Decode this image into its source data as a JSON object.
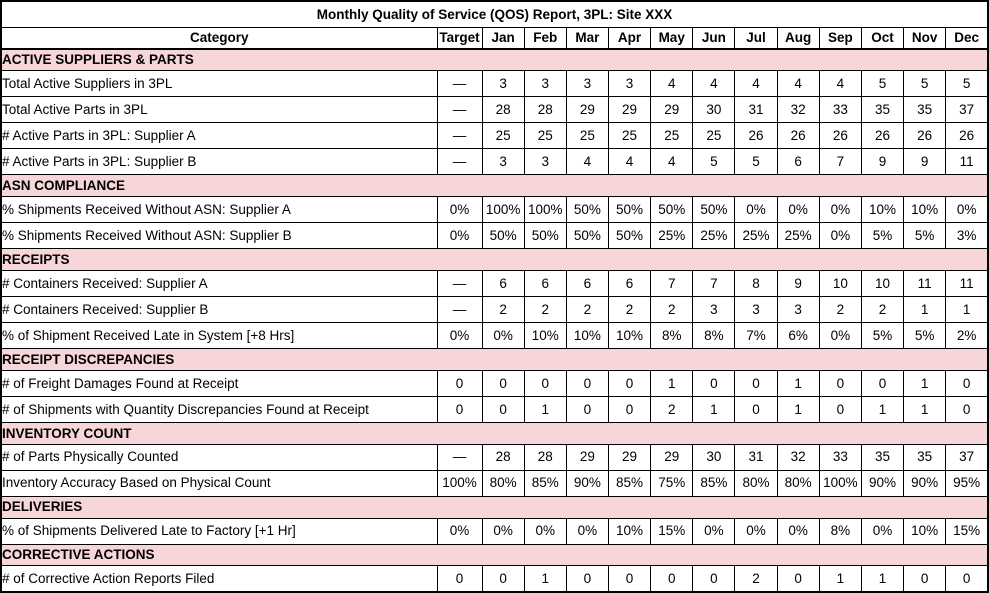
{
  "report": {
    "title": "Monthly Quality of Service (QOS) Report, 3PL: Site XXX"
  },
  "columns": [
    "Category",
    "Target",
    "Jan",
    "Feb",
    "Mar",
    "Apr",
    "May",
    "Jun",
    "Jul",
    "Aug",
    "Sep",
    "Oct",
    "Nov",
    "Dec"
  ],
  "colors": {
    "section_bg": "#f6d6d9",
    "border": "#000000",
    "background": "#ffffff",
    "text": "#000000"
  },
  "sections": [
    {
      "name": "ACTIVE SUPPLIERS & PARTS",
      "rows": [
        {
          "category": "Total Active Suppliers in 3PL",
          "target": "—",
          "values": [
            "3",
            "3",
            "3",
            "3",
            "4",
            "4",
            "4",
            "4",
            "4",
            "5",
            "5",
            "5"
          ]
        },
        {
          "category": "Total Active Parts in 3PL",
          "target": "—",
          "values": [
            "28",
            "28",
            "29",
            "29",
            "29",
            "30",
            "31",
            "32",
            "33",
            "35",
            "35",
            "37"
          ]
        },
        {
          "category": "# Active Parts in 3PL: Supplier A",
          "target": "—",
          "values": [
            "25",
            "25",
            "25",
            "25",
            "25",
            "25",
            "26",
            "26",
            "26",
            "26",
            "26",
            "26"
          ]
        },
        {
          "category": "# Active Parts in 3PL: Supplier B",
          "target": "—",
          "values": [
            "3",
            "3",
            "4",
            "4",
            "4",
            "5",
            "5",
            "6",
            "7",
            "9",
            "9",
            "11"
          ]
        }
      ]
    },
    {
      "name": "ASN COMPLIANCE",
      "rows": [
        {
          "category": "% Shipments Received Without ASN: Supplier A",
          "target": "0%",
          "values": [
            "100%",
            "100%",
            "50%",
            "50%",
            "50%",
            "50%",
            "0%",
            "0%",
            "0%",
            "10%",
            "10%",
            "0%"
          ]
        },
        {
          "category": "% Shipments Received Without ASN: Supplier B",
          "target": "0%",
          "values": [
            "50%",
            "50%",
            "50%",
            "50%",
            "25%",
            "25%",
            "25%",
            "25%",
            "0%",
            "5%",
            "5%",
            "3%"
          ]
        }
      ]
    },
    {
      "name": "RECEIPTS",
      "rows": [
        {
          "category": "# Containers Received: Supplier A",
          "target": "—",
          "values": [
            "6",
            "6",
            "6",
            "6",
            "7",
            "7",
            "8",
            "9",
            "10",
            "10",
            "11",
            "11"
          ]
        },
        {
          "category": "# Containers Received: Supplier B",
          "target": "—",
          "values": [
            "2",
            "2",
            "2",
            "2",
            "2",
            "3",
            "3",
            "3",
            "2",
            "2",
            "1",
            "1"
          ]
        },
        {
          "category": "% of Shipment Received Late in System [+8 Hrs]",
          "target": "0%",
          "values": [
            "0%",
            "10%",
            "10%",
            "10%",
            "8%",
            "8%",
            "7%",
            "6%",
            "0%",
            "5%",
            "5%",
            "2%"
          ]
        }
      ]
    },
    {
      "name": "RECEIPT DISCREPANCIES",
      "rows": [
        {
          "category": "# of Freight Damages Found at Receipt",
          "target": "0",
          "values": [
            "0",
            "0",
            "0",
            "0",
            "1",
            "0",
            "0",
            "1",
            "0",
            "0",
            "1",
            "0"
          ]
        },
        {
          "category": "# of Shipments with Quantity Discrepancies Found at Receipt",
          "target": "0",
          "values": [
            "0",
            "1",
            "0",
            "0",
            "2",
            "1",
            "0",
            "1",
            "0",
            "1",
            "1",
            "0"
          ]
        }
      ]
    },
    {
      "name": "INVENTORY COUNT",
      "rows": [
        {
          "category": "# of Parts Physically Counted",
          "target": "—",
          "values": [
            "28",
            "28",
            "29",
            "29",
            "29",
            "30",
            "31",
            "32",
            "33",
            "35",
            "35",
            "37"
          ]
        },
        {
          "category": "Inventory Accuracy Based on Physical Count",
          "target": "100%",
          "values": [
            "80%",
            "85%",
            "90%",
            "85%",
            "75%",
            "85%",
            "80%",
            "80%",
            "100%",
            "90%",
            "90%",
            "95%"
          ]
        }
      ]
    },
    {
      "name": "DELIVERIES",
      "rows": [
        {
          "category": "% of Shipments Delivered Late to Factory [+1 Hr]",
          "target": "0%",
          "values": [
            "0%",
            "0%",
            "0%",
            "10%",
            "15%",
            "0%",
            "0%",
            "0%",
            "8%",
            "0%",
            "10%",
            "15%"
          ]
        }
      ]
    },
    {
      "name": "CORRECTIVE ACTIONS",
      "rows": [
        {
          "category": "# of Corrective Action Reports Filed",
          "target": "0",
          "values": [
            "0",
            "1",
            "0",
            "0",
            "0",
            "0",
            "2",
            "0",
            "1",
            "1",
            "0",
            "0"
          ]
        }
      ]
    }
  ]
}
